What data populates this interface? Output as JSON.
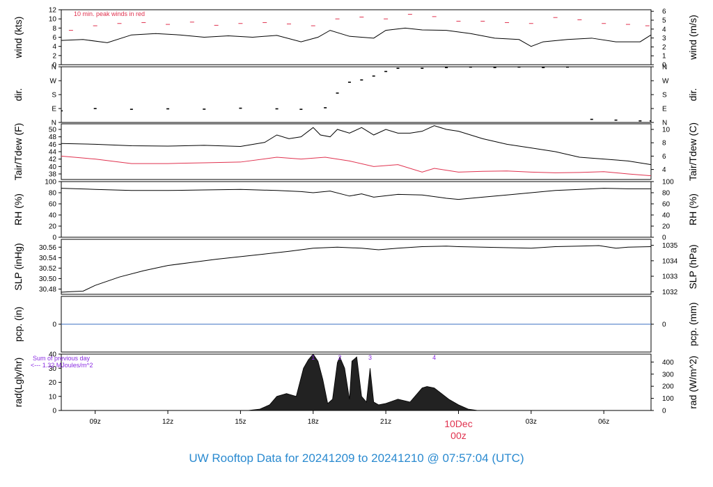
{
  "footer_title": "UW Rooftop Data for 20241209  to  20241210 @ 07:57:04  (UTC)",
  "colors": {
    "frame": "#000000",
    "series_black": "#000000",
    "series_red": "#e0314e",
    "peak_gust": "#e0314e",
    "precip_line": "#3a6fc2",
    "annotation": "#8a2be2",
    "date_label": "#e0314e",
    "title": "#2a8ad0"
  },
  "time_axis": {
    "start_hour_utc": 7.6,
    "end_hour_utc": 31.95,
    "ticks": [
      {
        "hour": 9,
        "label": "09z"
      },
      {
        "hour": 12,
        "label": "12z"
      },
      {
        "hour": 15,
        "label": "15z"
      },
      {
        "hour": 18,
        "label": "18z"
      },
      {
        "hour": 21,
        "label": "21z"
      },
      {
        "hour": 24,
        "label": "00z"
      },
      {
        "hour": 27,
        "label": "03z"
      },
      {
        "hour": 30,
        "label": "06z"
      }
    ],
    "date_label": "10Dec",
    "date_hour": 24,
    "date_tick_label": "00z"
  },
  "chart_data": [
    {
      "id": "wind",
      "type": "line",
      "ylabel_left": "wind (kts)",
      "ylabel_right": "wind (m/s)",
      "ylim": [
        0,
        12
      ],
      "left_ticks": [
        "0",
        "2",
        "4",
        "6",
        "8",
        "10",
        "12"
      ],
      "right_ticks": [
        "0",
        "1",
        "2",
        "3",
        "4",
        "5",
        "6"
      ],
      "annotation": "10 min. peak winds in red",
      "series": [
        {
          "role": "sustained",
          "x": [
            7.6,
            8.5,
            9.5,
            10.5,
            11.5,
            12.5,
            13.5,
            14.5,
            15.5,
            16.5,
            17.5,
            18.2,
            18.7,
            19.5,
            20.5,
            21.0,
            21.8,
            22.5,
            23.5,
            24.5,
            25.5,
            26.5,
            27.0,
            27.5,
            28.5,
            29.5,
            30.5,
            31.5,
            31.95
          ],
          "y": [
            5.3,
            5.5,
            4.8,
            6.5,
            6.8,
            6.5,
            6.0,
            6.3,
            6.0,
            6.4,
            5.0,
            6.0,
            7.5,
            6.2,
            5.8,
            7.5,
            8.0,
            7.6,
            7.5,
            6.8,
            5.8,
            5.5,
            4.0,
            5.0,
            5.5,
            5.8,
            5.0,
            5.0,
            6.5
          ]
        },
        {
          "role": "peak",
          "x": [
            8.0,
            9.0,
            10.0,
            11.0,
            12.0,
            13.0,
            14.0,
            15.0,
            16.0,
            17.0,
            18.0,
            19.0,
            20.0,
            21.0,
            22.0,
            23.0,
            24.0,
            25.0,
            26.0,
            27.0,
            28.0,
            29.0,
            30.0,
            31.0,
            31.8
          ],
          "y": [
            7.5,
            8.5,
            9.0,
            9.2,
            8.8,
            9.3,
            8.6,
            9.0,
            9.2,
            8.9,
            8.5,
            10.0,
            10.4,
            10.0,
            11.0,
            10.5,
            9.5,
            9.5,
            9.2,
            9.0,
            10.3,
            9.8,
            9.0,
            8.8,
            8.5
          ]
        }
      ]
    },
    {
      "id": "dir",
      "type": "scatter",
      "ylabel_left": "dir.",
      "ylabel_right": "dir.",
      "ylim": [
        0,
        360
      ],
      "left_ticks": [
        "N",
        "E",
        "S",
        "W",
        "N"
      ],
      "right_ticks": [
        "N",
        "E",
        "S",
        "W",
        "N"
      ],
      "series": [
        {
          "role": "direction_deg",
          "x": [
            7.6,
            9.0,
            10.5,
            12.0,
            13.5,
            15.0,
            16.5,
            17.5,
            18.5,
            19.0,
            19.5,
            20.0,
            20.5,
            21.0,
            21.5,
            22.5,
            23.5,
            24.5,
            25.5,
            26.5,
            27.5,
            28.5,
            29.5,
            30.5,
            31.5,
            31.95
          ],
          "y": [
            75,
            90,
            85,
            88,
            86,
            92,
            88,
            85,
            95,
            190,
            260,
            275,
            300,
            330,
            350,
            350,
            355,
            358,
            355,
            358,
            355,
            358,
            20,
            15,
            10,
            10
          ]
        }
      ]
    },
    {
      "id": "temperature",
      "type": "line",
      "ylabel_left": "Tair/Tdew (F)",
      "ylabel_right": "Tair/Tdew (C)",
      "ylim": [
        36.5,
        51.5
      ],
      "left_ticks": [
        "38",
        "40",
        "42",
        "44",
        "46",
        "48",
        "50"
      ],
      "right_ticks": [
        "4",
        "6",
        "8",
        "10"
      ],
      "series": [
        {
          "role": "air_temp",
          "x": [
            7.6,
            9.0,
            10.5,
            12.0,
            13.5,
            15.0,
            16.0,
            16.5,
            17.0,
            17.5,
            18.0,
            18.3,
            18.7,
            19.0,
            19.5,
            20.0,
            20.5,
            21.0,
            21.5,
            22.0,
            22.5,
            23.0,
            23.5,
            24.0,
            25.0,
            26.0,
            27.0,
            28.0,
            29.0,
            30.0,
            31.0,
            31.95
          ],
          "y": [
            46.2,
            46.0,
            45.6,
            45.5,
            45.7,
            45.4,
            46.5,
            48.5,
            47.5,
            48.0,
            50.5,
            48.5,
            48.0,
            50.0,
            49.0,
            50.5,
            48.5,
            50.0,
            49.0,
            49.0,
            49.5,
            51.0,
            50.0,
            49.5,
            47.5,
            46.0,
            45.0,
            44.0,
            42.5,
            42.0,
            41.5,
            40.5
          ]
        },
        {
          "role": "dew_point",
          "x": [
            7.6,
            9.0,
            10.5,
            12.0,
            13.5,
            15.0,
            16.5,
            17.5,
            18.5,
            19.5,
            20.5,
            21.5,
            22.5,
            23.0,
            24.0,
            25.0,
            26.0,
            27.0,
            28.0,
            29.0,
            30.0,
            31.0,
            31.95
          ],
          "y": [
            42.8,
            42.0,
            40.8,
            40.8,
            41.0,
            41.2,
            42.5,
            42.0,
            42.5,
            41.5,
            40.0,
            40.5,
            38.5,
            39.5,
            38.5,
            38.7,
            38.8,
            38.5,
            38.3,
            38.4,
            38.6,
            38.0,
            37.5
          ]
        }
      ]
    },
    {
      "id": "rh",
      "type": "line",
      "ylabel_left": "RH (%)",
      "ylabel_right": "RH (%)",
      "ylim": [
        0,
        100
      ],
      "left_ticks": [
        "0",
        "20",
        "40",
        "60",
        "80",
        "100"
      ],
      "right_ticks": [
        "0",
        "20",
        "40",
        "60",
        "80",
        "100"
      ],
      "series": [
        {
          "role": "rh",
          "x": [
            7.6,
            9.0,
            10.5,
            12.0,
            13.5,
            15.0,
            16.5,
            17.5,
            18.0,
            18.7,
            19.5,
            20.0,
            20.5,
            21.5,
            22.5,
            23.5,
            24.0,
            25.0,
            26.0,
            27.0,
            28.0,
            29.0,
            30.0,
            31.0,
            31.95
          ],
          "y": [
            88,
            86,
            84,
            84,
            85,
            86,
            84,
            82,
            80,
            83,
            74,
            78,
            72,
            77,
            76,
            70,
            68,
            72,
            76,
            80,
            84,
            86,
            88,
            87,
            87
          ]
        }
      ]
    },
    {
      "id": "pressure",
      "type": "line",
      "ylabel_left": "SLP (inHg)",
      "ylabel_right": "SLP (hPa)",
      "ylim": [
        30.47,
        30.575
      ],
      "left_ticks": [
        "30.48",
        "30.50",
        "30.52",
        "30.54",
        "30.56"
      ],
      "right_ticks": [
        "1032",
        "1033",
        "1034",
        "1035"
      ],
      "series": [
        {
          "role": "slp",
          "x": [
            7.6,
            8.0,
            8.5,
            9.0,
            10.0,
            11.0,
            12.0,
            13.0,
            14.0,
            15.0,
            16.0,
            17.0,
            18.0,
            19.0,
            20.0,
            20.7,
            21.5,
            22.5,
            23.5,
            24.0,
            25.0,
            26.0,
            27.0,
            28.0,
            29.0,
            29.8,
            30.5,
            31.0,
            31.95
          ],
          "y": [
            30.474,
            30.475,
            30.476,
            30.487,
            30.503,
            30.515,
            30.525,
            30.531,
            30.537,
            30.542,
            30.547,
            30.552,
            30.558,
            30.56,
            30.558,
            30.555,
            30.558,
            30.561,
            30.562,
            30.561,
            30.56,
            30.559,
            30.558,
            30.561,
            30.562,
            30.563,
            30.558,
            30.56,
            30.561
          ]
        }
      ]
    },
    {
      "id": "precip",
      "type": "line",
      "ylabel_left": "pcp. (in)",
      "ylabel_right": "pcp. (mm)",
      "ylim": [
        -1,
        1
      ],
      "left_ticks": [
        "0"
      ],
      "right_ticks": [
        "0"
      ],
      "series": [
        {
          "role": "precip",
          "x": [
            7.6,
            31.95
          ],
          "y": [
            0,
            0
          ]
        }
      ]
    },
    {
      "id": "radiation",
      "type": "area",
      "ylabel_left": "rad(Lgly/hr)",
      "ylabel_right": "rad (W/m^2)",
      "ylim": [
        0,
        40
      ],
      "left_ticks": [
        "0",
        "10",
        "20",
        "30",
        "40"
      ],
      "right_ticks": [
        "0",
        "100",
        "200",
        "300",
        "400"
      ],
      "sum_label_line1": "Sum of previous day",
      "sum_label_line2": "<--- 1.32 MJoules/m^2",
      "peak_markers": [
        {
          "hour": 18.0,
          "label": "1"
        },
        {
          "hour": 19.1,
          "label": "2"
        },
        {
          "hour": 20.35,
          "label": "3"
        },
        {
          "hour": 23.0,
          "label": "4"
        }
      ],
      "series": [
        {
          "role": "solar",
          "x": [
            15.3,
            15.8,
            16.2,
            16.5,
            16.9,
            17.3,
            17.6,
            17.8,
            18.0,
            18.2,
            18.4,
            18.6,
            18.8,
            19.0,
            19.1,
            19.3,
            19.5,
            19.6,
            19.8,
            20.0,
            20.2,
            20.35,
            20.5,
            20.7,
            21.0,
            21.5,
            22.0,
            22.5,
            22.7,
            23.0,
            23.3,
            23.6,
            24.0,
            24.4,
            24.8
          ],
          "y": [
            0.0,
            1.0,
            4.0,
            10.0,
            12.0,
            10.0,
            30.0,
            36.0,
            40.0,
            35.0,
            22.0,
            5.0,
            8.0,
            34.0,
            38.0,
            30.0,
            8.0,
            35.0,
            38.0,
            10.0,
            6.0,
            30.0,
            6.0,
            4.0,
            5.0,
            8.0,
            6.0,
            16.0,
            17.0,
            16.0,
            12.0,
            8.0,
            4.0,
            1.0,
            0.0
          ]
        }
      ]
    }
  ]
}
